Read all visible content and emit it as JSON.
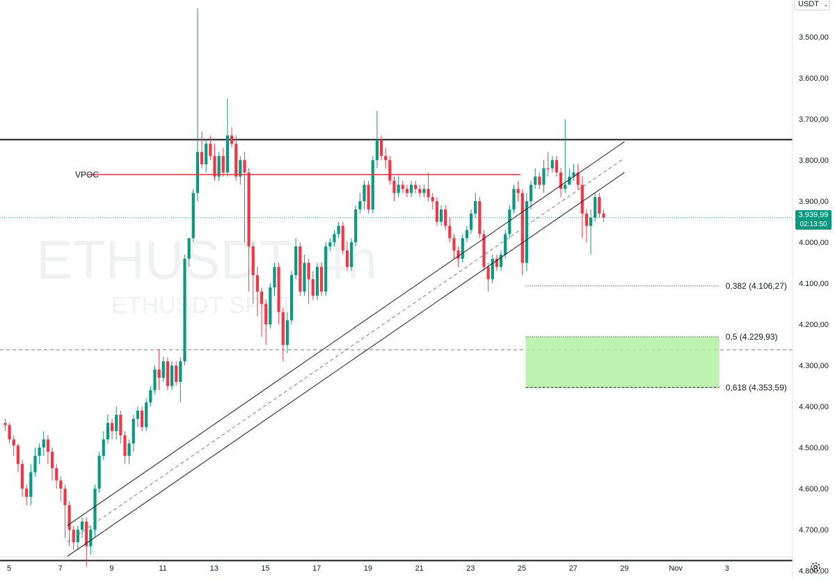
{
  "header": {
    "currency": "USDT"
  },
  "watermark": {
    "symbol": "ETHUSDT, 4h",
    "market": "ETHUSDT SPOT"
  },
  "last_price": {
    "price": "3.939,99",
    "countdown": "02:13:50"
  },
  "colors": {
    "up": "#089981",
    "down": "#f23645",
    "vpoc": "#f23645",
    "zone": "#b2f0a2",
    "price_line": "#089981"
  },
  "icons": {
    "settings": "gear-icon",
    "dropdown": "chevron-down-icon"
  },
  "chart_data": {
    "type": "candlestick",
    "y_scale": "inverted",
    "ylim_top": 3410,
    "ylim_bottom": 4820,
    "y_ticks": [
      {
        "value": 3500,
        "label": "3.500,00"
      },
      {
        "value": 3600,
        "label": "3.600,00"
      },
      {
        "value": 3700,
        "label": "3.700,00"
      },
      {
        "value": 3800,
        "label": "3.800,00"
      },
      {
        "value": 3900,
        "label": "3.900,00"
      },
      {
        "value": 4000,
        "label": "4.000,00"
      },
      {
        "value": 4100,
        "label": "4.100,00"
      },
      {
        "value": 4200,
        "label": "4.200,00"
      },
      {
        "value": 4300,
        "label": "4.300,00"
      },
      {
        "value": 4400,
        "label": "4.400,00"
      },
      {
        "value": 4500,
        "label": "4.500,00"
      },
      {
        "value": 4600,
        "label": "4.600,00"
      },
      {
        "value": 4700,
        "label": "4.700,00"
      },
      {
        "value": 4800,
        "label": "4.800,00"
      }
    ],
    "x_ticks": [
      {
        "day": 5,
        "label": "5"
      },
      {
        "day": 7,
        "label": "7"
      },
      {
        "day": 9,
        "label": "9"
      },
      {
        "day": 11,
        "label": "11"
      },
      {
        "day": 13,
        "label": "13"
      },
      {
        "day": 15,
        "label": "15"
      },
      {
        "day": 17,
        "label": "17"
      },
      {
        "day": 19,
        "label": "19"
      },
      {
        "day": 21,
        "label": "21"
      },
      {
        "day": 23,
        "label": "23"
      },
      {
        "day": 25,
        "label": "25"
      },
      {
        "day": 27,
        "label": "27"
      },
      {
        "day": 29,
        "label": "29"
      },
      {
        "day": 31,
        "label": "Nov"
      },
      {
        "day": 33,
        "label": "3"
      }
    ],
    "candles_start_day": 4.85,
    "candle_days": 0.1667,
    "closes": [
      4445,
      4480,
      4495,
      4540,
      4600,
      4620,
      4560,
      4520,
      4500,
      4480,
      4510,
      4550,
      4580,
      4600,
      4640,
      4700,
      4730,
      4700,
      4680,
      4740,
      4700,
      4600,
      4520,
      4480,
      4440,
      4460,
      4420,
      4470,
      4520,
      4490,
      4430,
      4410,
      4450,
      4390,
      4360,
      4310,
      4330,
      4290,
      4350,
      4300,
      4340,
      4290,
      4040,
      3990,
      3880,
      3780,
      3810,
      3760,
      3790,
      3840,
      3790,
      3830,
      3740,
      3760,
      3840,
      3800,
      3830,
      4010,
      4080,
      4120,
      4150,
      4200,
      4110,
      4060,
      4170,
      4250,
      4190,
      4080,
      4010,
      4120,
      4050,
      4090,
      4130,
      4060,
      4120,
      4010,
      4000,
      3980,
      3960,
      4020,
      4060,
      4000,
      3920,
      3900,
      3860,
      3920,
      3800,
      3750,
      3790,
      3800,
      3850,
      3880,
      3860,
      3870,
      3880,
      3860,
      3870,
      3880,
      3870,
      3890,
      3900,
      3950,
      3920,
      3960,
      3990,
      4020,
      4040,
      3990,
      3970,
      3930,
      3900,
      3980,
      4060,
      4090,
      4040,
      4060,
      4030,
      3980,
      3920,
      3870,
      3880,
      4050,
      3900,
      3860,
      3840,
      3860,
      3820,
      3820,
      3800,
      3830,
      3870,
      3860,
      3840,
      3830,
      3860,
      3930,
      3960,
      3940,
      3890,
      3930,
      3940
    ],
    "opens": [
      4440,
      4445,
      4480,
      4495,
      4540,
      4600,
      4620,
      4560,
      4520,
      4500,
      4480,
      4510,
      4550,
      4580,
      4600,
      4640,
      4700,
      4730,
      4700,
      4680,
      4740,
      4700,
      4600,
      4520,
      4480,
      4440,
      4460,
      4420,
      4470,
      4520,
      4490,
      4430,
      4410,
      4450,
      4390,
      4360,
      4310,
      4330,
      4290,
      4350,
      4300,
      4340,
      4290,
      4040,
      3990,
      3880,
      3780,
      3810,
      3760,
      3790,
      3840,
      3790,
      3830,
      3740,
      3760,
      3840,
      3800,
      3830,
      4010,
      4080,
      4120,
      4150,
      4200,
      4110,
      4060,
      4170,
      4250,
      4190,
      4080,
      4010,
      4120,
      4050,
      4090,
      4130,
      4060,
      4120,
      4010,
      4000,
      3980,
      3960,
      4020,
      4060,
      4000,
      3920,
      3900,
      3860,
      3920,
      3800,
      3750,
      3790,
      3800,
      3850,
      3880,
      3860,
      3870,
      3880,
      3860,
      3870,
      3880,
      3870,
      3890,
      3900,
      3950,
      3920,
      3960,
      3990,
      4020,
      4040,
      3990,
      3970,
      3930,
      3900,
      3980,
      4060,
      4090,
      4040,
      4060,
      4030,
      3980,
      3920,
      3870,
      3880,
      4050,
      3900,
      3860,
      3840,
      3860,
      3820,
      3820,
      3800,
      3830,
      3870,
      3860,
      3840,
      3830,
      3860,
      3930,
      3960,
      3940,
      3890,
      3930
    ],
    "wicks": [
      [
        4430,
        4460
      ],
      [
        4440,
        4490
      ],
      [
        4470,
        4520
      ],
      [
        4490,
        4560
      ],
      [
        4530,
        4620
      ],
      [
        4590,
        4640
      ],
      [
        4540,
        4640
      ],
      [
        4500,
        4570
      ],
      [
        4490,
        4540
      ],
      [
        4460,
        4520
      ],
      [
        4470,
        4540
      ],
      [
        4500,
        4580
      ],
      [
        4540,
        4600
      ],
      [
        4570,
        4630
      ],
      [
        4590,
        4720
      ],
      [
        4630,
        4740
      ],
      [
        4690,
        4750
      ],
      [
        4690,
        4750
      ],
      [
        4670,
        4720
      ],
      [
        4670,
        4790
      ],
      [
        4690,
        4760
      ],
      [
        4590,
        4720
      ],
      [
        4510,
        4610
      ],
      [
        4460,
        4530
      ],
      [
        4420,
        4490
      ],
      [
        4430,
        4480
      ],
      [
        4400,
        4480
      ],
      [
        4410,
        4490
      ],
      [
        4460,
        4540
      ],
      [
        4480,
        4540
      ],
      [
        4420,
        4510
      ],
      [
        4400,
        4450
      ],
      [
        4400,
        4460
      ],
      [
        4380,
        4460
      ],
      [
        4350,
        4400
      ],
      [
        4300,
        4370
      ],
      [
        4260,
        4360
      ],
      [
        4280,
        4340
      ],
      [
        4280,
        4360
      ],
      [
        4290,
        4360
      ],
      [
        4290,
        4350
      ],
      [
        4280,
        4390
      ],
      [
        4030,
        4300
      ],
      [
        3990,
        4060
      ],
      [
        3870,
        4000
      ],
      [
        3430,
        3900
      ],
      [
        3730,
        3820
      ],
      [
        3750,
        3830
      ],
      [
        3740,
        3800
      ],
      [
        3760,
        3850
      ],
      [
        3780,
        3850
      ],
      [
        3770,
        3840
      ],
      [
        3650,
        3840
      ],
      [
        3720,
        3770
      ],
      [
        3740,
        3850
      ],
      [
        3790,
        3860
      ],
      [
        3780,
        4000
      ],
      [
        3820,
        4120
      ],
      [
        4000,
        4150
      ],
      [
        4060,
        4180
      ],
      [
        4110,
        4230
      ],
      [
        4140,
        4250
      ],
      [
        4100,
        4210
      ],
      [
        4050,
        4130
      ],
      [
        4050,
        4200
      ],
      [
        4160,
        4290
      ],
      [
        4170,
        4270
      ],
      [
        4070,
        4200
      ],
      [
        3990,
        4090
      ],
      [
        4000,
        4130
      ],
      [
        4030,
        4130
      ],
      [
        4040,
        4150
      ],
      [
        4070,
        4140
      ],
      [
        4050,
        4140
      ],
      [
        4050,
        4130
      ],
      [
        4000,
        4130
      ],
      [
        3990,
        4020
      ],
      [
        3970,
        4010
      ],
      [
        3950,
        3990
      ],
      [
        3950,
        4030
      ],
      [
        4000,
        4070
      ],
      [
        3990,
        4070
      ],
      [
        3910,
        4010
      ],
      [
        3880,
        3930
      ],
      [
        3850,
        3920
      ],
      [
        3850,
        3930
      ],
      [
        3790,
        3930
      ],
      [
        3680,
        3820
      ],
      [
        3740,
        3800
      ],
      [
        3770,
        3820
      ],
      [
        3790,
        3860
      ],
      [
        3840,
        3900
      ],
      [
        3840,
        3890
      ],
      [
        3850,
        3880
      ],
      [
        3860,
        3890
      ],
      [
        3850,
        3890
      ],
      [
        3850,
        3880
      ],
      [
        3860,
        3890
      ],
      [
        3860,
        3890
      ],
      [
        3830,
        3900
      ],
      [
        3880,
        3920
      ],
      [
        3890,
        3960
      ],
      [
        3910,
        3960
      ],
      [
        3910,
        3970
      ],
      [
        3940,
        4000
      ],
      [
        3980,
        4040
      ],
      [
        4010,
        4060
      ],
      [
        3980,
        4050
      ],
      [
        3960,
        4000
      ],
      [
        3920,
        3980
      ],
      [
        3880,
        3940
      ],
      [
        3890,
        3990
      ],
      [
        3970,
        4070
      ],
      [
        4050,
        4120
      ],
      [
        4030,
        4100
      ],
      [
        4030,
        4070
      ],
      [
        4020,
        4070
      ],
      [
        3970,
        4040
      ],
      [
        3910,
        3990
      ],
      [
        3860,
        3930
      ],
      [
        3850,
        3900
      ],
      [
        3870,
        4080
      ],
      [
        3880,
        4070
      ],
      [
        3850,
        3920
      ],
      [
        3820,
        3870
      ],
      [
        3830,
        3870
      ],
      [
        3800,
        3880
      ],
      [
        3780,
        3840
      ],
      [
        3790,
        3830
      ],
      [
        3790,
        3840
      ],
      [
        3820,
        3890
      ],
      [
        3700,
        3880
      ],
      [
        3820,
        3860
      ],
      [
        3810,
        3850
      ],
      [
        3810,
        3870
      ],
      [
        3840,
        3990
      ],
      [
        3920,
        4000
      ],
      [
        3920,
        4030
      ],
      [
        3880,
        3950
      ],
      [
        3880,
        3940
      ],
      [
        3920,
        3950
      ]
    ],
    "annotations": {
      "resistance": 3750,
      "support": 4775,
      "vpoc": {
        "label": "VPOC",
        "price": 3835,
        "from_day": 7.0,
        "to_day": 25.0
      },
      "dashed_level": 4262,
      "channel": [
        {
          "style": "solid",
          "from": [
            7.0,
            4690
          ],
          "to": [
            29.0,
            3755
          ]
        },
        {
          "style": "dashed",
          "from": [
            7.0,
            4730
          ],
          "to": [
            29.0,
            3795
          ]
        },
        {
          "style": "solid",
          "from": [
            7.0,
            4765
          ],
          "to": [
            29.0,
            3830
          ]
        }
      ],
      "fib": [
        {
          "label": "0,382 (4.106,27)",
          "price": 4106.27,
          "style": "dotted"
        },
        {
          "label": "0,5 (4.229,93)",
          "price": 4229.93,
          "style": "dotted"
        },
        {
          "label": "0,618 (4.353,59)",
          "price": 4353.59,
          "style": "dashed"
        }
      ],
      "fib_from_day": 25.15,
      "fib_to_day": 33.0,
      "zone": {
        "from_price": 4229.93,
        "to_price": 4353.59
      }
    }
  }
}
